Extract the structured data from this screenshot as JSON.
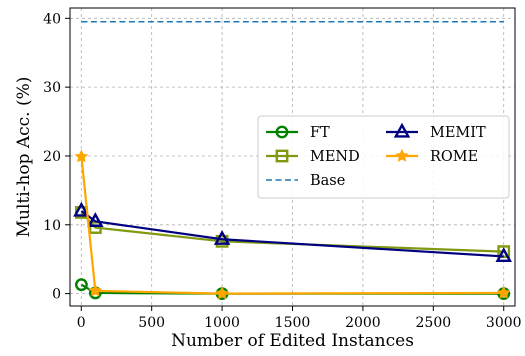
{
  "chart_data": {
    "type": "line",
    "title": "",
    "xlabel": "Number of Edited Instances",
    "ylabel": "Multi-hop Acc. (%)",
    "xlim": [
      -80,
      3080
    ],
    "ylim": [
      -1.8,
      41.5
    ],
    "xticks": [
      0,
      500,
      1000,
      1500,
      2000,
      2500,
      3000
    ],
    "yticks": [
      0,
      10,
      20,
      30,
      40
    ],
    "xtick_labels": [
      "0",
      "500",
      "1000",
      "1500",
      "2000",
      "2500",
      "3000"
    ],
    "ytick_labels": [
      "0",
      "10",
      "20",
      "30",
      "40"
    ],
    "grid": true,
    "legend_position": "center-right",
    "series": [
      {
        "name": "FT",
        "color": "#008000",
        "marker": "circle",
        "x": [
          1,
          100,
          1000,
          3000
        ],
        "y": [
          1.3,
          0.1,
          0.0,
          0.0
        ]
      },
      {
        "name": "MEND",
        "color": "#7f9a10",
        "marker": "square",
        "x": [
          1,
          100,
          1000,
          3000
        ],
        "y": [
          11.8,
          9.6,
          7.6,
          6.1
        ]
      },
      {
        "name": "Base",
        "color": "#1f77b4",
        "marker": "none",
        "dashed": true,
        "x": [
          1,
          3000
        ],
        "y": [
          39.5,
          39.5
        ]
      },
      {
        "name": "MEMIT",
        "color": "#000080",
        "marker": "triangle",
        "x": [
          1,
          100,
          1000,
          3000
        ],
        "y": [
          12.0,
          10.5,
          7.9,
          5.4
        ]
      },
      {
        "name": "ROME",
        "color": "#ffa500",
        "marker": "star",
        "x": [
          1,
          100,
          1000,
          3000
        ],
        "y": [
          19.9,
          0.4,
          0.0,
          0.1
        ]
      }
    ]
  }
}
